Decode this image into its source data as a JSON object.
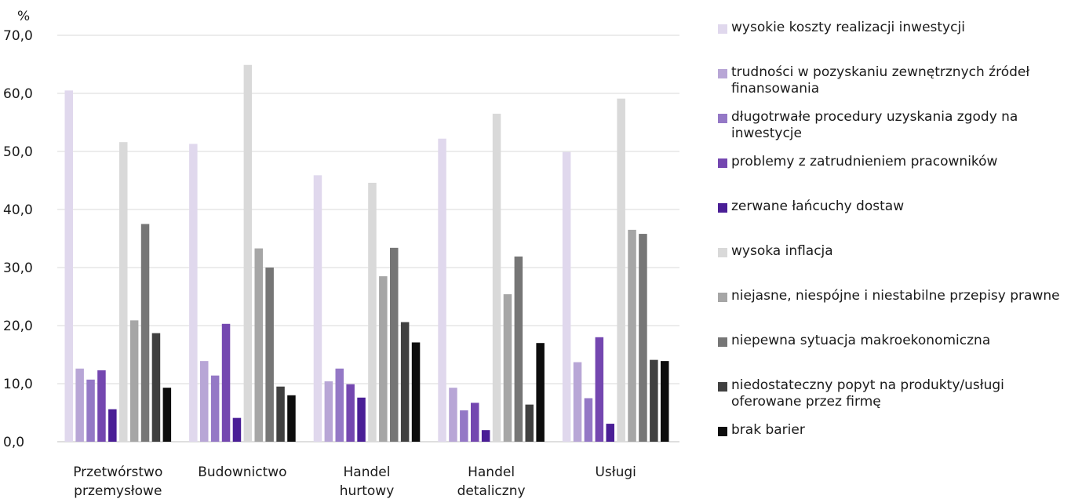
{
  "chart_data": {
    "type": "bar",
    "ylabel": "%",
    "ylim": [
      0,
      70
    ],
    "yticks": [
      "0,0",
      "10,0",
      "20,0",
      "30,0",
      "40,0",
      "50,0",
      "60,0",
      "70,0"
    ],
    "grid": true,
    "legend_position": "right",
    "categories": [
      [
        "Przetwórstwo",
        "przemysłowe"
      ],
      [
        "Budownictwo"
      ],
      [
        "Handel",
        "hurtowy"
      ],
      [
        "Handel",
        "detaliczny"
      ],
      [
        "Usługi"
      ]
    ],
    "series": [
      {
        "name": "wysokie koszty realizacji inwestycji",
        "color": "#e0d8ed",
        "values": [
          60.5,
          51.3,
          45.9,
          52.2,
          49.9
        ]
      },
      {
        "name": "trudności w pozyskaniu zewnętrznych źródeł finansowania",
        "color": "#b8a6d6",
        "values": [
          12.6,
          13.9,
          10.4,
          9.3,
          13.7
        ]
      },
      {
        "name": "długotrwałe procedury uzyskania zgody na inwestycje",
        "color": "#9478c6",
        "values": [
          10.7,
          11.4,
          12.6,
          5.4,
          7.5
        ]
      },
      {
        "name": "problemy z zatrudnieniem pracowników",
        "color": "#7447b0",
        "values": [
          12.3,
          20.3,
          9.9,
          6.7,
          18.0
        ]
      },
      {
        "name": "zerwane łańcuchy dostaw",
        "color": "#4a1e96",
        "values": [
          5.6,
          4.1,
          7.6,
          2.0,
          3.1
        ]
      },
      {
        "name": "wysoka inflacja",
        "color": "#d9d9d9",
        "values": [
          51.6,
          64.9,
          44.6,
          56.5,
          59.1
        ]
      },
      {
        "name": "niejasne, niespójne i niestabilne przepisy prawne",
        "color": "#a6a6a6",
        "values": [
          20.9,
          33.3,
          28.5,
          25.4,
          36.5
        ]
      },
      {
        "name": "niepewna sytuacja makroekonomiczna",
        "color": "#767676",
        "values": [
          37.5,
          30.0,
          33.4,
          31.9,
          35.8
        ]
      },
      {
        "name": "niedostateczny popyt na produkty/usługi oferowane przez firmę",
        "color": "#404040",
        "values": [
          18.7,
          9.5,
          20.6,
          6.4,
          14.1
        ]
      },
      {
        "name": "brak barier",
        "color": "#0d0d0d",
        "values": [
          9.3,
          8.0,
          17.1,
          17.0,
          13.9
        ]
      }
    ]
  }
}
